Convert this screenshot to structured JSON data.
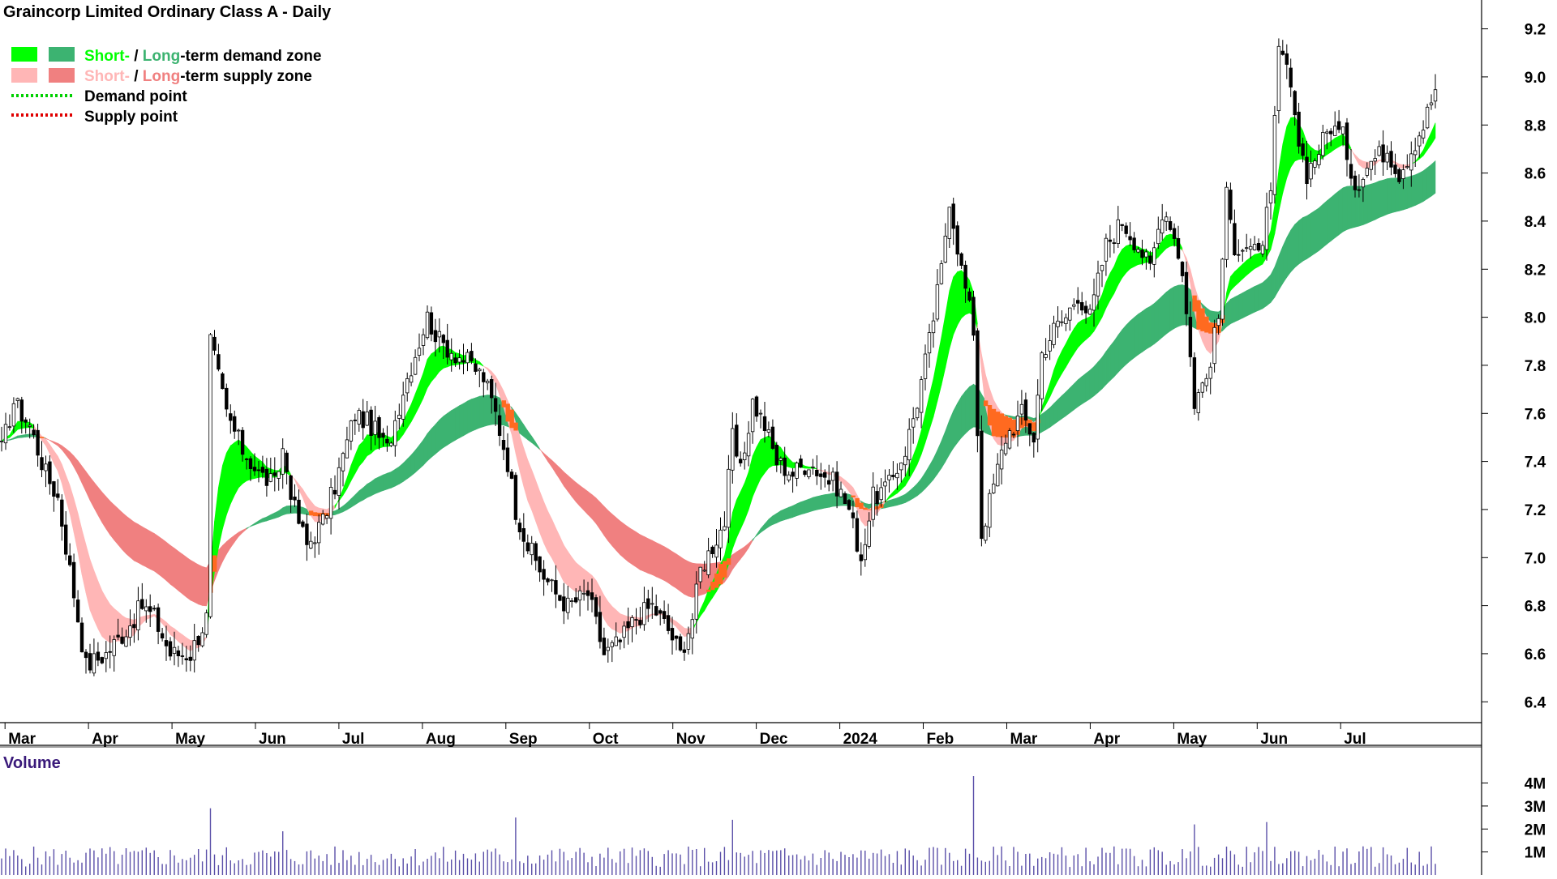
{
  "title": "Graincorp Limited Ordinary Class A - Daily",
  "legend": {
    "demand_zone": {
      "short": "Short-",
      "sep": " / ",
      "long": "Long",
      "rest": "-term demand zone"
    },
    "supply_zone": {
      "short": "Short-",
      "sep": " / ",
      "long": "Long",
      "rest": "-term supply zone"
    },
    "demand_point": "Demand point",
    "supply_point": "Supply point"
  },
  "colors": {
    "short_demand": "#00ff00",
    "long_demand": "#3cb371",
    "short_supply": "#ffb6b6",
    "long_supply": "#f08080",
    "overlap_zone": "#ff6a20",
    "demand_point": "#00d000",
    "supply_point": "#e00000",
    "volume_bar": "#5a4fa8",
    "volume_label": "#3a1a7a"
  },
  "volume_title": "Volume",
  "chart_data": {
    "type": "candlestick",
    "title": "Graincorp Limited Ordinary Class A - Daily",
    "x_tick_labels": [
      "Mar",
      "Apr",
      "May",
      "Jun",
      "Jul",
      "Aug",
      "Sep",
      "Oct",
      "Nov",
      "Dec",
      "2024",
      "Feb",
      "Mar",
      "Apr",
      "May",
      "Jun",
      "Jul"
    ],
    "y_ticks": [
      6.4,
      6.6,
      6.8,
      7.0,
      7.2,
      7.4,
      7.6,
      7.8,
      8.0,
      8.2,
      8.4,
      8.6,
      8.8,
      9.0,
      9.2
    ],
    "ylim": [
      6.32,
      9.32
    ],
    "price_keypoints": [
      [
        0,
        7.45
      ],
      [
        3,
        7.65
      ],
      [
        7,
        7.55
      ],
      [
        11,
        7.35
      ],
      [
        14,
        7.25
      ],
      [
        18,
        6.85
      ],
      [
        21,
        6.55
      ],
      [
        26,
        6.6
      ],
      [
        31,
        6.7
      ],
      [
        35,
        6.8
      ],
      [
        38,
        6.75
      ],
      [
        42,
        6.6
      ],
      [
        47,
        6.6
      ],
      [
        51,
        6.75
      ],
      [
        52,
        7.9
      ],
      [
        56,
        7.6
      ],
      [
        60,
        7.45
      ],
      [
        64,
        7.35
      ],
      [
        68,
        7.3
      ],
      [
        70,
        7.45
      ],
      [
        73,
        7.2
      ],
      [
        76,
        7.05
      ],
      [
        80,
        7.15
      ],
      [
        83,
        7.3
      ],
      [
        88,
        7.6
      ],
      [
        92,
        7.55
      ],
      [
        96,
        7.45
      ],
      [
        100,
        7.7
      ],
      [
        104,
        7.9
      ],
      [
        106,
        8.0
      ],
      [
        109,
        7.9
      ],
      [
        113,
        7.85
      ],
      [
        117,
        7.8
      ],
      [
        120,
        7.75
      ],
      [
        123,
        7.6
      ],
      [
        126,
        7.4
      ],
      [
        128,
        7.2
      ],
      [
        131,
        7.05
      ],
      [
        134,
        6.95
      ],
      [
        138,
        6.85
      ],
      [
        141,
        6.8
      ],
      [
        146,
        6.85
      ],
      [
        150,
        6.6
      ],
      [
        154,
        6.65
      ],
      [
        158,
        6.75
      ],
      [
        162,
        6.8
      ],
      [
        166,
        6.7
      ],
      [
        169,
        6.6
      ],
      [
        172,
        6.75
      ],
      [
        174,
        6.95
      ],
      [
        177,
        7.05
      ],
      [
        180,
        7.15
      ],
      [
        182,
        7.5
      ],
      [
        184,
        7.35
      ],
      [
        187,
        7.65
      ],
      [
        190,
        7.55
      ],
      [
        193,
        7.4
      ],
      [
        197,
        7.35
      ],
      [
        201,
        7.4
      ],
      [
        204,
        7.35
      ],
      [
        208,
        7.3
      ],
      [
        211,
        7.2
      ],
      [
        214,
        7.0
      ],
      [
        217,
        7.25
      ],
      [
        221,
        7.3
      ],
      [
        225,
        7.45
      ],
      [
        228,
        7.65
      ],
      [
        231,
        7.9
      ],
      [
        234,
        8.2
      ],
      [
        236,
        8.5
      ],
      [
        239,
        8.2
      ],
      [
        242,
        7.95
      ],
      [
        244,
        7.1
      ],
      [
        247,
        7.3
      ],
      [
        250,
        7.5
      ],
      [
        254,
        7.6
      ],
      [
        257,
        7.5
      ],
      [
        259,
        7.85
      ],
      [
        262,
        7.95
      ],
      [
        265,
        8.0
      ],
      [
        268,
        8.1
      ],
      [
        271,
        8.0
      ],
      [
        275,
        8.3
      ],
      [
        279,
        8.4
      ],
      [
        283,
        8.3
      ],
      [
        286,
        8.2
      ],
      [
        289,
        8.45
      ],
      [
        291,
        8.4
      ],
      [
        294,
        8.2
      ],
      [
        297,
        7.65
      ],
      [
        300,
        7.75
      ],
      [
        303,
        8.0
      ],
      [
        305,
        8.5
      ],
      [
        307,
        8.3
      ],
      [
        310,
        8.3
      ],
      [
        313,
        8.25
      ],
      [
        316,
        8.5
      ],
      [
        318,
        9.1
      ],
      [
        320,
        9.05
      ],
      [
        322,
        8.8
      ],
      [
        325,
        8.6
      ],
      [
        328,
        8.7
      ],
      [
        331,
        8.8
      ],
      [
        334,
        8.75
      ],
      [
        337,
        8.55
      ],
      [
        341,
        8.65
      ],
      [
        345,
        8.7
      ],
      [
        348,
        8.6
      ],
      [
        351,
        8.7
      ],
      [
        354,
        8.8
      ],
      [
        357,
        8.95
      ]
    ],
    "demand_points": [],
    "supply_points": [],
    "volume": {
      "y_ticks": [
        1000000,
        2000000,
        3000000,
        4000000
      ],
      "y_tick_labels": [
        "1M",
        "2M",
        "3M",
        "4M"
      ],
      "ylim": [
        0,
        4300000
      ],
      "spikes": [
        [
          52,
          2.9
        ],
        [
          70,
          1.9
        ],
        [
          128,
          2.5
        ],
        [
          182,
          2.4
        ],
        [
          242,
          4.3
        ],
        [
          297,
          2.2
        ],
        [
          315,
          2.3
        ]
      ]
    }
  }
}
